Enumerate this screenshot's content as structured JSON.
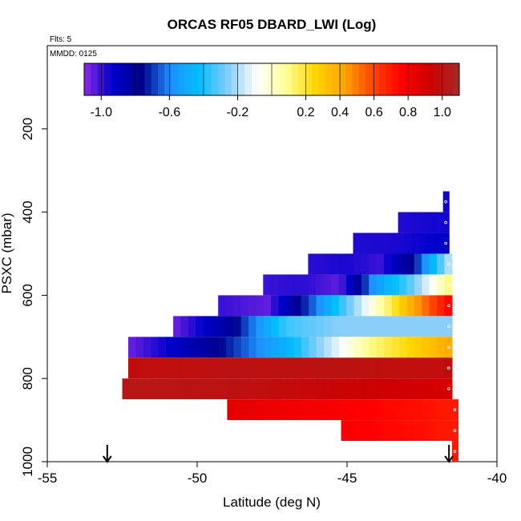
{
  "chart_data": {
    "type": "heatmap",
    "title": "ORCAS RF05 DBARD_LWI (Log)",
    "flights_label": "Flts: 5",
    "date_label": "MMDD: 0125",
    "xlabel": "Latitude (deg N)",
    "ylabel": "PSXC (mbar)",
    "xlim": [
      -55,
      -40
    ],
    "ylim": [
      1000,
      0
    ],
    "x_ticks": [
      -55,
      -50,
      -45,
      -40
    ],
    "y_ticks": [
      200,
      400,
      600,
      800,
      1000
    ],
    "grid": false,
    "colorbar": {
      "range": [
        -1.1,
        1.1
      ],
      "ticks": [
        -1.0,
        -0.6,
        -0.2,
        0.2,
        0.4,
        0.6,
        0.8,
        1.0
      ],
      "tick_labels": [
        "-1.0",
        "-0.6",
        "-0.2",
        "0.2",
        "0.4",
        "0.6",
        "0.8",
        "1.0"
      ],
      "colors": [
        "#8a2be2",
        "#0000cd",
        "#00008b",
        "#1e90ff",
        "#00bfff",
        "#87cefa",
        "#ffffff",
        "#ffff99",
        "#ffd700",
        "#ffa500",
        "#ff4500",
        "#ff0000",
        "#cd0000",
        "#a52a2a"
      ]
    },
    "layers": [
      {
        "p": 375,
        "lat_min": -41.8,
        "lat_max": -41.6,
        "values": [
          -0.95
        ]
      },
      {
        "p": 425,
        "lat_min": -43.3,
        "lat_max": -41.6,
        "values": [
          -0.97,
          -0.95
        ]
      },
      {
        "p": 475,
        "lat_min": -44.8,
        "lat_max": -41.6,
        "values": [
          -0.97,
          -0.96,
          -0.92
        ]
      },
      {
        "p": 525,
        "lat_min": -46.3,
        "lat_max": -41.5,
        "values": [
          -0.98,
          -0.96,
          -1.0,
          -0.75,
          -0.2
        ]
      },
      {
        "p": 575,
        "lat_min": -47.8,
        "lat_max": -41.5,
        "values": [
          -1.0,
          -0.98,
          -1.05,
          -0.55,
          -0.3,
          0.1
        ]
      },
      {
        "p": 625,
        "lat_min": -49.3,
        "lat_max": -41.5,
        "values": [
          -1.0,
          -1.05,
          -0.65,
          -0.2,
          0.3,
          0.75
        ]
      },
      {
        "p": 675,
        "lat_min": -50.8,
        "lat_max": -41.5,
        "values": [
          -1.05,
          -0.8,
          -0.35,
          -0.25,
          -0.25,
          -0.25
        ]
      },
      {
        "p": 725,
        "lat_min": -52.3,
        "lat_max": -41.5,
        "values": [
          -1.05,
          -0.8,
          -0.45,
          0.1,
          0.4
        ]
      },
      {
        "p": 775,
        "lat_min": -52.3,
        "lat_max": -41.5,
        "values": [
          0.98,
          1.0,
          1.0,
          0.98
        ]
      },
      {
        "p": 825,
        "lat_min": -52.5,
        "lat_max": -41.5,
        "values": [
          1.02,
          1.0,
          0.95,
          0.9
        ]
      },
      {
        "p": 875,
        "lat_min": -49.0,
        "lat_max": -41.3,
        "values": [
          0.85,
          0.78,
          0.7
        ]
      },
      {
        "p": 925,
        "lat_min": -45.2,
        "lat_max": -41.3,
        "values": [
          0.78,
          0.7
        ]
      },
      {
        "p": 975,
        "lat_min": -41.5,
        "lat_max": -41.3,
        "values": [
          0.7
        ]
      }
    ],
    "flight_markers_lat": [
      -53.0,
      -41.6
    ]
  }
}
